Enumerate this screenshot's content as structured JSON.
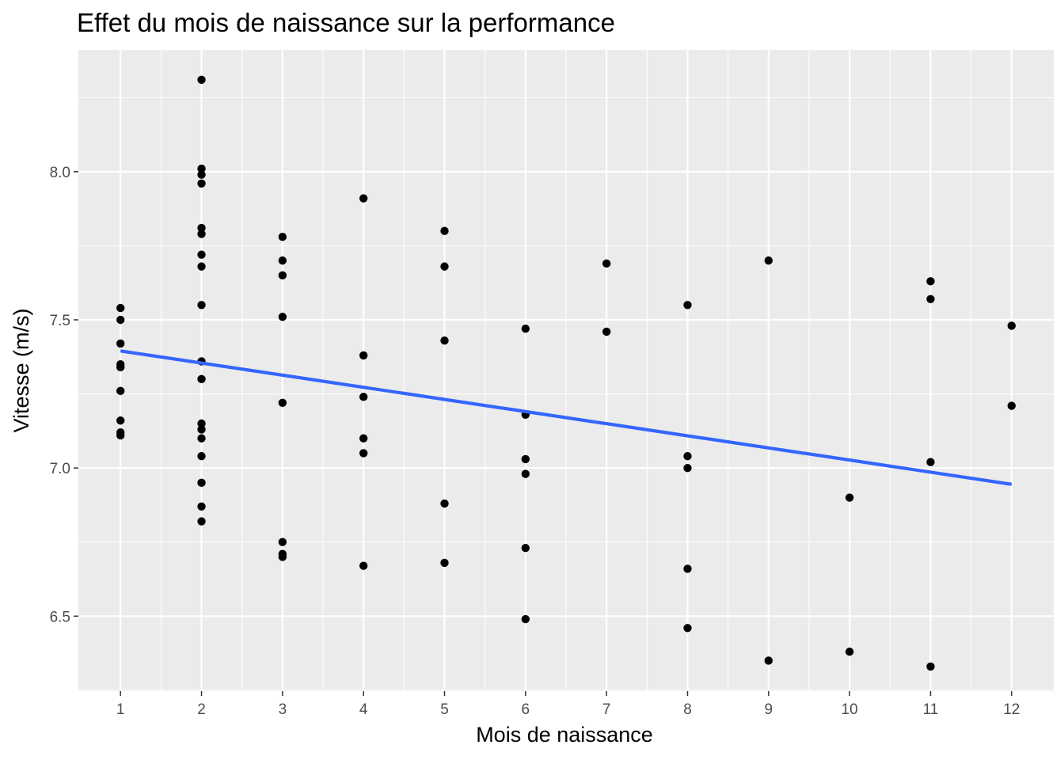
{
  "chart_data": {
    "type": "scatter",
    "title": "Effet du mois de naissance sur la performance",
    "xlabel": "Mois de naissance",
    "ylabel": "Vitesse (m/s)",
    "x_ticks": [
      "1",
      "2",
      "3",
      "4",
      "5",
      "6",
      "7",
      "8",
      "9",
      "10",
      "11",
      "12"
    ],
    "y_ticks": [
      "6.5",
      "7.0",
      "7.5",
      "8.0"
    ],
    "xlim": [
      0.48,
      12.52
    ],
    "ylim": [
      6.247,
      8.411
    ],
    "grid": true,
    "colors": {
      "panel": "#ebebeb",
      "grid": "#ffffff",
      "points": "#000000",
      "trend": "#3366ff"
    },
    "series": [
      {
        "type": "scatter",
        "points": [
          [
            1,
            7.54
          ],
          [
            1,
            7.5
          ],
          [
            1,
            7.42
          ],
          [
            1,
            7.35
          ],
          [
            1,
            7.34
          ],
          [
            1,
            7.26
          ],
          [
            1,
            7.16
          ],
          [
            1,
            7.12
          ],
          [
            1,
            7.11
          ],
          [
            2,
            8.31
          ],
          [
            2,
            8.01
          ],
          [
            2,
            7.99
          ],
          [
            2,
            7.96
          ],
          [
            2,
            7.81
          ],
          [
            2,
            7.79
          ],
          [
            2,
            7.72
          ],
          [
            2,
            7.68
          ],
          [
            2,
            7.55
          ],
          [
            2,
            7.36
          ],
          [
            2,
            7.3
          ],
          [
            2,
            7.15
          ],
          [
            2,
            7.13
          ],
          [
            2,
            7.1
          ],
          [
            2,
            7.04
          ],
          [
            2,
            6.95
          ],
          [
            2,
            6.87
          ],
          [
            2,
            6.82
          ],
          [
            3,
            7.78
          ],
          [
            3,
            7.7
          ],
          [
            3,
            7.65
          ],
          [
            3,
            7.51
          ],
          [
            3,
            7.22
          ],
          [
            3,
            6.75
          ],
          [
            3,
            6.71
          ],
          [
            3,
            6.7
          ],
          [
            4,
            7.91
          ],
          [
            4,
            7.38
          ],
          [
            4,
            7.24
          ],
          [
            4,
            7.1
          ],
          [
            4,
            7.05
          ],
          [
            4,
            6.67
          ],
          [
            5,
            7.8
          ],
          [
            5,
            7.68
          ],
          [
            5,
            7.43
          ],
          [
            5,
            6.88
          ],
          [
            5,
            6.68
          ],
          [
            6,
            7.47
          ],
          [
            6,
            7.18
          ],
          [
            6,
            7.03
          ],
          [
            6,
            6.98
          ],
          [
            6,
            6.73
          ],
          [
            6,
            6.49
          ],
          [
            7,
            7.69
          ],
          [
            7,
            7.46
          ],
          [
            8,
            7.55
          ],
          [
            8,
            7.04
          ],
          [
            8,
            7.0
          ],
          [
            8,
            6.66
          ],
          [
            8,
            6.46
          ],
          [
            9,
            7.7
          ],
          [
            9,
            6.35
          ],
          [
            10,
            6.9
          ],
          [
            10,
            6.38
          ],
          [
            11,
            7.63
          ],
          [
            11,
            7.57
          ],
          [
            11,
            7.02
          ],
          [
            11,
            6.33
          ],
          [
            12,
            7.48
          ],
          [
            12,
            7.21
          ]
        ]
      },
      {
        "type": "line",
        "points": [
          [
            1,
            7.395
          ],
          [
            12,
            6.945
          ]
        ]
      }
    ]
  }
}
